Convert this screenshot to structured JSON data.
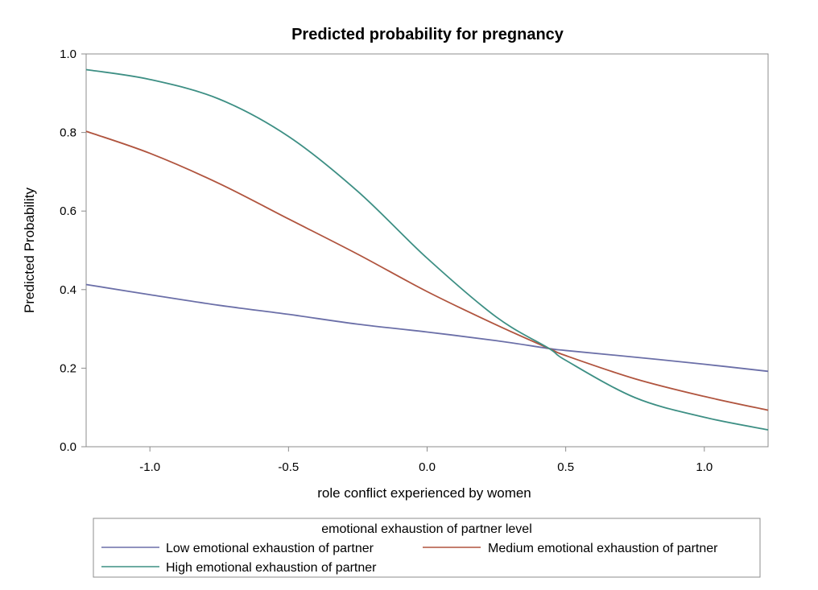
{
  "chart_data": {
    "type": "line",
    "title": "Predicted probability for pregnancy",
    "xlabel": "role conflict experienced by women",
    "ylabel": "Predicted Probability",
    "xlim": [
      -1.23,
      1.23
    ],
    "ylim": [
      0.0,
      1.0
    ],
    "xticks": [
      -1.0,
      -0.5,
      0.0,
      0.5,
      1.0
    ],
    "xtick_labels": [
      "-1.0",
      "-0.5",
      "0.0",
      "0.5",
      "1.0"
    ],
    "yticks": [
      0.0,
      0.2,
      0.4,
      0.6,
      0.8,
      1.0
    ],
    "ytick_labels": [
      "0.0",
      "0.2",
      "0.4",
      "0.6",
      "0.8",
      "1.0"
    ],
    "grid": false,
    "legend_title": "emotional exhaustion of partner level",
    "legend_position": "bottom",
    "series": [
      {
        "name": "Low emotional exhaustion of partner",
        "color": "#6b6fa8",
        "x": [
          -1.23,
          -1.0,
          -0.75,
          -0.5,
          -0.25,
          0.0,
          0.25,
          0.44,
          0.5,
          0.75,
          1.0,
          1.23
        ],
        "y": [
          0.413,
          0.387,
          0.36,
          0.337,
          0.312,
          0.292,
          0.27,
          0.25,
          0.245,
          0.228,
          0.21,
          0.192
        ]
      },
      {
        "name": "Medium emotional exhaustion of partner",
        "color": "#b0543e",
        "x": [
          -1.23,
          -1.0,
          -0.75,
          -0.5,
          -0.25,
          0.0,
          0.25,
          0.44,
          0.5,
          0.75,
          1.0,
          1.23
        ],
        "y": [
          0.803,
          0.747,
          0.67,
          0.58,
          0.49,
          0.395,
          0.31,
          0.25,
          0.232,
          0.173,
          0.128,
          0.093
        ]
      },
      {
        "name": "High emotional exhaustion of partner",
        "color": "#3d8f84",
        "x": [
          -1.23,
          -1.0,
          -0.75,
          -0.5,
          -0.25,
          0.0,
          0.25,
          0.44,
          0.5,
          0.75,
          1.0,
          1.23
        ],
        "y": [
          0.96,
          0.935,
          0.885,
          0.79,
          0.65,
          0.48,
          0.33,
          0.25,
          0.22,
          0.125,
          0.075,
          0.043
        ]
      }
    ]
  }
}
